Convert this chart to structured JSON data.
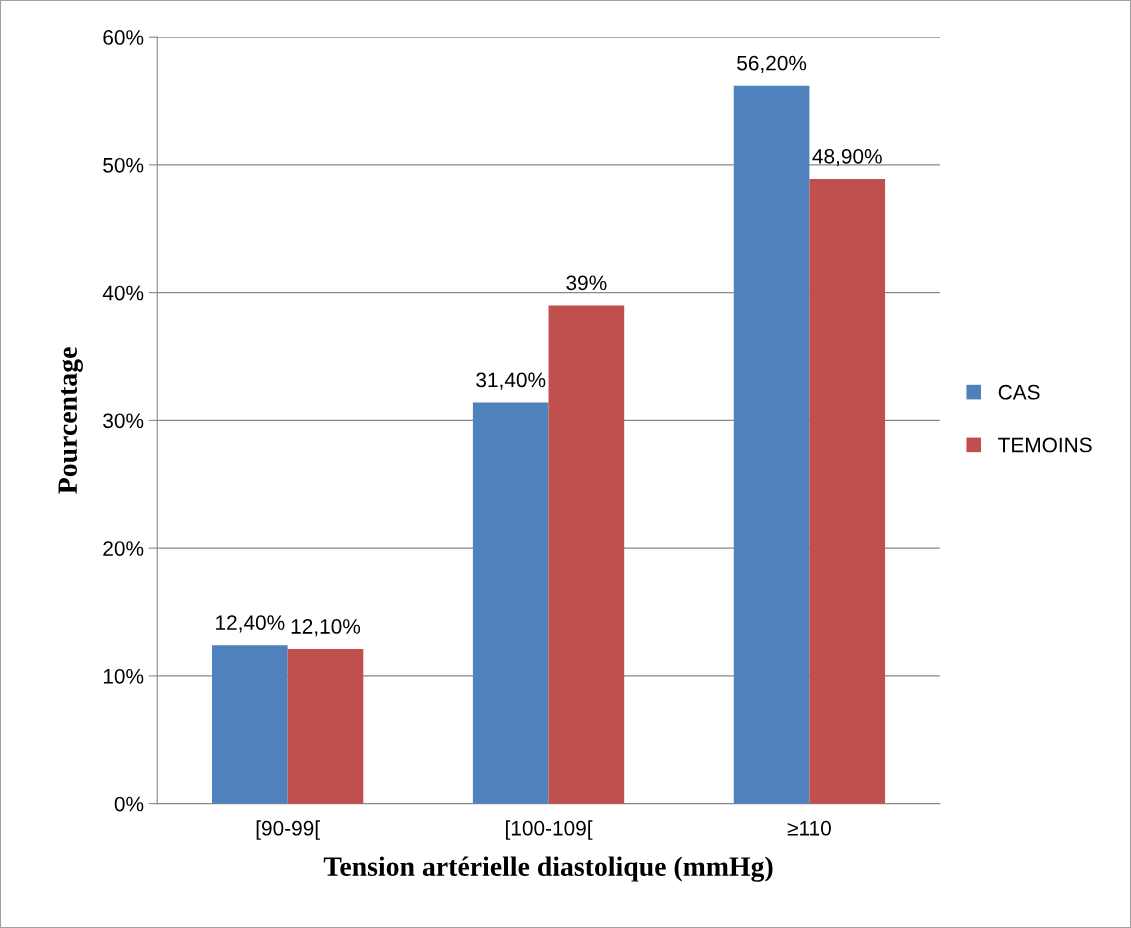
{
  "chart_data": {
    "type": "bar",
    "xlabel": "Tension artérielle diastolique (mmHg)",
    "ylabel": "Pourcentage",
    "categories": [
      "[90-99[",
      "[100-109[",
      "≥110"
    ],
    "series": [
      {
        "name": "CAS",
        "color": "#4f81bd",
        "values": [
          12.4,
          31.4,
          56.2
        ],
        "value_labels": [
          "12,40%",
          "31,40%",
          "56,20%"
        ]
      },
      {
        "name": "TEMOINS",
        "color": "#c0504d",
        "values": [
          12.1,
          39,
          48.9
        ],
        "value_labels": [
          "12,10%",
          "39%",
          "48,90%"
        ]
      }
    ],
    "ylim": [
      0,
      60
    ],
    "yticks": [
      {
        "value": 0,
        "label": "0%"
      },
      {
        "value": 10,
        "label": "10%"
      },
      {
        "value": 20,
        "label": "20%"
      },
      {
        "value": 30,
        "label": "30%"
      },
      {
        "value": 40,
        "label": "40%"
      },
      {
        "value": 50,
        "label": "50%"
      },
      {
        "value": 60,
        "label": "60%"
      }
    ],
    "grid": "y",
    "legend": "right"
  }
}
